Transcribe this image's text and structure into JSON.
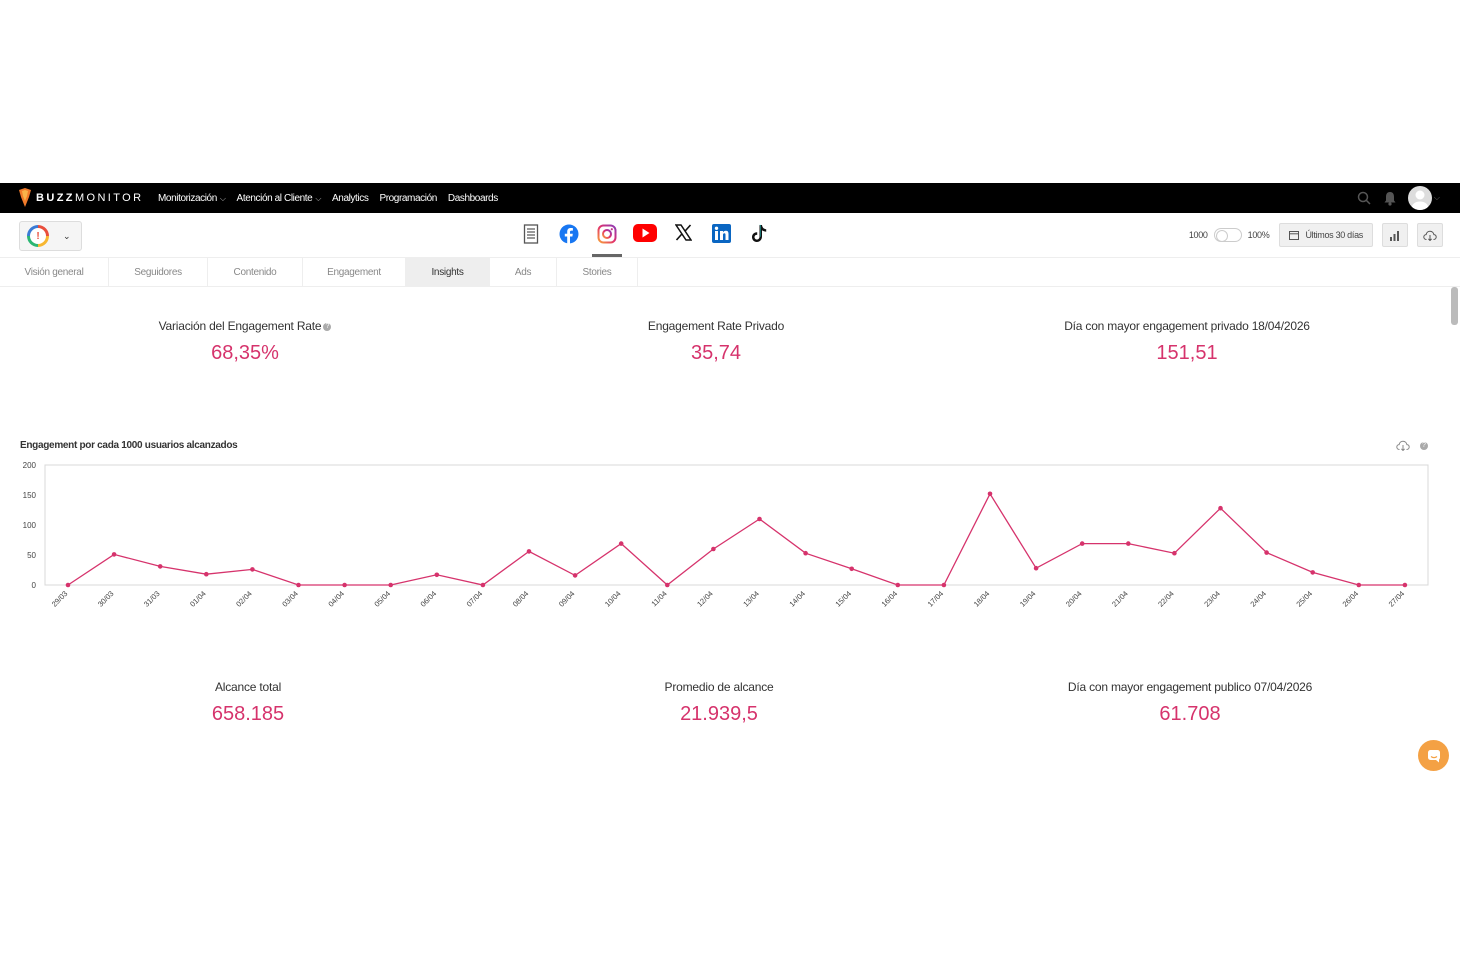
{
  "brand": {
    "bold": "BUZZ",
    "rest": "MONITOR"
  },
  "nav": {
    "items": [
      {
        "label": "Monitorización",
        "dropdown": true
      },
      {
        "label": "Atención al Cliente",
        "dropdown": true
      },
      {
        "label": "Analytics",
        "dropdown": false
      },
      {
        "label": "Programación",
        "dropdown": false
      },
      {
        "label": "Dashboards",
        "dropdown": false
      }
    ],
    "icons": [
      "search-icon",
      "bell-icon",
      "user-avatar"
    ]
  },
  "toolbar": {
    "brand_icon": "brand-logo-icon",
    "networks": [
      "overview-list-icon",
      "facebook-icon",
      "instagram-icon",
      "youtube-icon",
      "x-icon",
      "linkedin-icon",
      "tiktok-icon"
    ],
    "active_network": "instagram",
    "toggle_left": "1000",
    "toggle_right": "100%",
    "date_range": "Últimos 30 días",
    "icons": [
      "calendar-icon",
      "bar-chart-icon",
      "cloud-download-icon"
    ]
  },
  "tabs": [
    "Visión general",
    "Seguidores",
    "Contenido",
    "Engagement",
    "Insights",
    "Ads",
    "Stories"
  ],
  "active_tab": "Insights",
  "stats_top": [
    {
      "label": "Variación del Engagement Rate",
      "value": "68,35%",
      "help": true
    },
    {
      "label": "Engagement Rate Privado",
      "value": "35,74",
      "help": false
    },
    {
      "label": "Día con mayor engagement privado 18/04/2026",
      "value": "151,51",
      "help": false
    }
  ],
  "stats_bottom": [
    {
      "label": "Alcance total",
      "value": "658.185"
    },
    {
      "label": "Promedio de alcance",
      "value": "21.939,5"
    },
    {
      "label": "Día con mayor engagement publico 07/04/2026",
      "value": "61.708"
    }
  ],
  "colors": {
    "accent": "#d6336c",
    "navbar": "#000000",
    "chat": "#f4a144"
  },
  "chart_data": {
    "type": "line",
    "title": "Engagement por cada 1000 usuarios alcanzados",
    "categories": [
      "29/03",
      "30/03",
      "31/03",
      "01/04",
      "02/04",
      "03/04",
      "04/04",
      "05/04",
      "06/04",
      "07/04",
      "08/04",
      "09/04",
      "10/04",
      "11/04",
      "12/04",
      "13/04",
      "14/04",
      "15/04",
      "16/04",
      "17/04",
      "18/04",
      "19/04",
      "20/04",
      "21/04",
      "22/04",
      "23/04",
      "24/04",
      "25/04",
      "26/04",
      "27/04"
    ],
    "values": [
      0,
      51,
      31,
      18,
      26,
      0,
      0,
      0,
      17,
      0,
      56,
      16,
      69,
      0,
      60,
      110,
      53,
      27,
      0,
      0,
      152,
      28,
      69,
      69,
      53,
      128,
      54,
      21,
      0,
      0
    ],
    "ylim": [
      0,
      200
    ],
    "yticks": [
      0,
      50,
      100,
      150,
      200
    ],
    "color": "#d6336c",
    "grid": false
  }
}
